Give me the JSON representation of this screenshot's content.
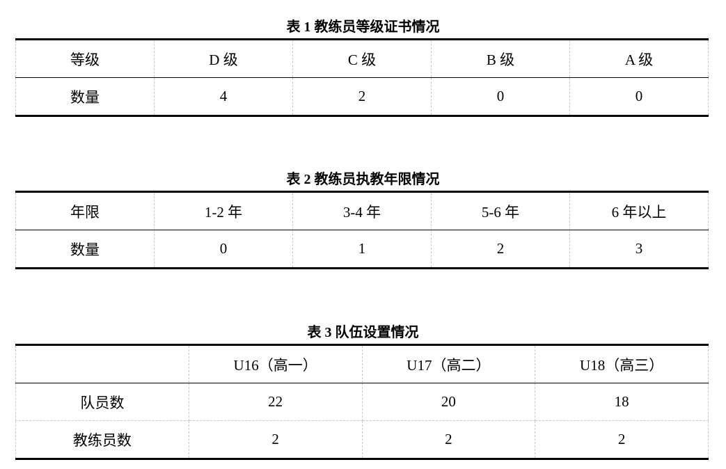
{
  "table1": {
    "title": "表 1  教练员等级证书情况",
    "header": [
      "等级",
      "D 级",
      "C 级",
      "B 级",
      "A 级"
    ],
    "rows": [
      [
        "数量",
        "4",
        "2",
        "0",
        "0"
      ]
    ]
  },
  "table2": {
    "title": "表 2  教练员执教年限情况",
    "header": [
      "年限",
      "1-2 年",
      "3-4 年",
      "5-6 年",
      "6 年以上"
    ],
    "rows": [
      [
        "数量",
        "0",
        "1",
        "2",
        "3"
      ]
    ]
  },
  "table3": {
    "title": "表 3  队伍设置情况",
    "header": [
      "",
      "U16（高一）",
      "U17（高二）",
      "U18（高三）"
    ],
    "rows": [
      [
        "队员数",
        "22",
        "20",
        "18"
      ],
      [
        "教练员数",
        "2",
        "2",
        "2"
      ]
    ]
  }
}
